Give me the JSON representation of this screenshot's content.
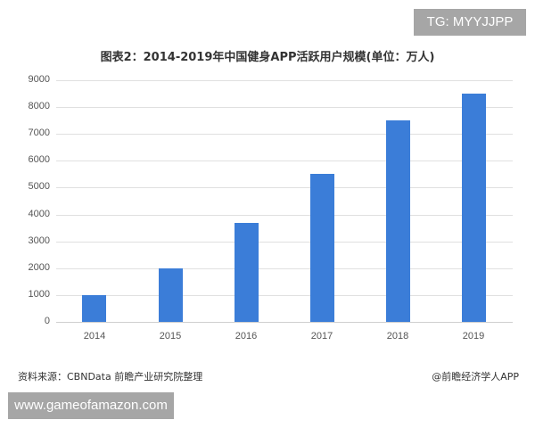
{
  "overlay": {
    "top_tag": "TG: MYYJJPP",
    "bottom_url": "www.gameofamazon.com"
  },
  "chart_data": {
    "type": "bar",
    "title": "图表2：2014-2019年中国健身APP活跃用户规模(单位：万人)",
    "xlabel": "",
    "ylabel": "",
    "categories": [
      "2014",
      "2015",
      "2016",
      "2017",
      "2018",
      "2019"
    ],
    "values": [
      1000,
      2000,
      3700,
      5500,
      7500,
      8500
    ],
    "yticks": [
      "0",
      "1000",
      "2000",
      "3000",
      "4000",
      "5000",
      "6000",
      "7000",
      "8000",
      "9000"
    ],
    "ylim": [
      0,
      9000
    ],
    "grid": true,
    "legend": null,
    "bar_color": "#3b7dd8"
  },
  "footer": {
    "source": "资料来源：CBNData 前瞻产业研究院整理",
    "credit": "@前瞻经济学人APP"
  }
}
